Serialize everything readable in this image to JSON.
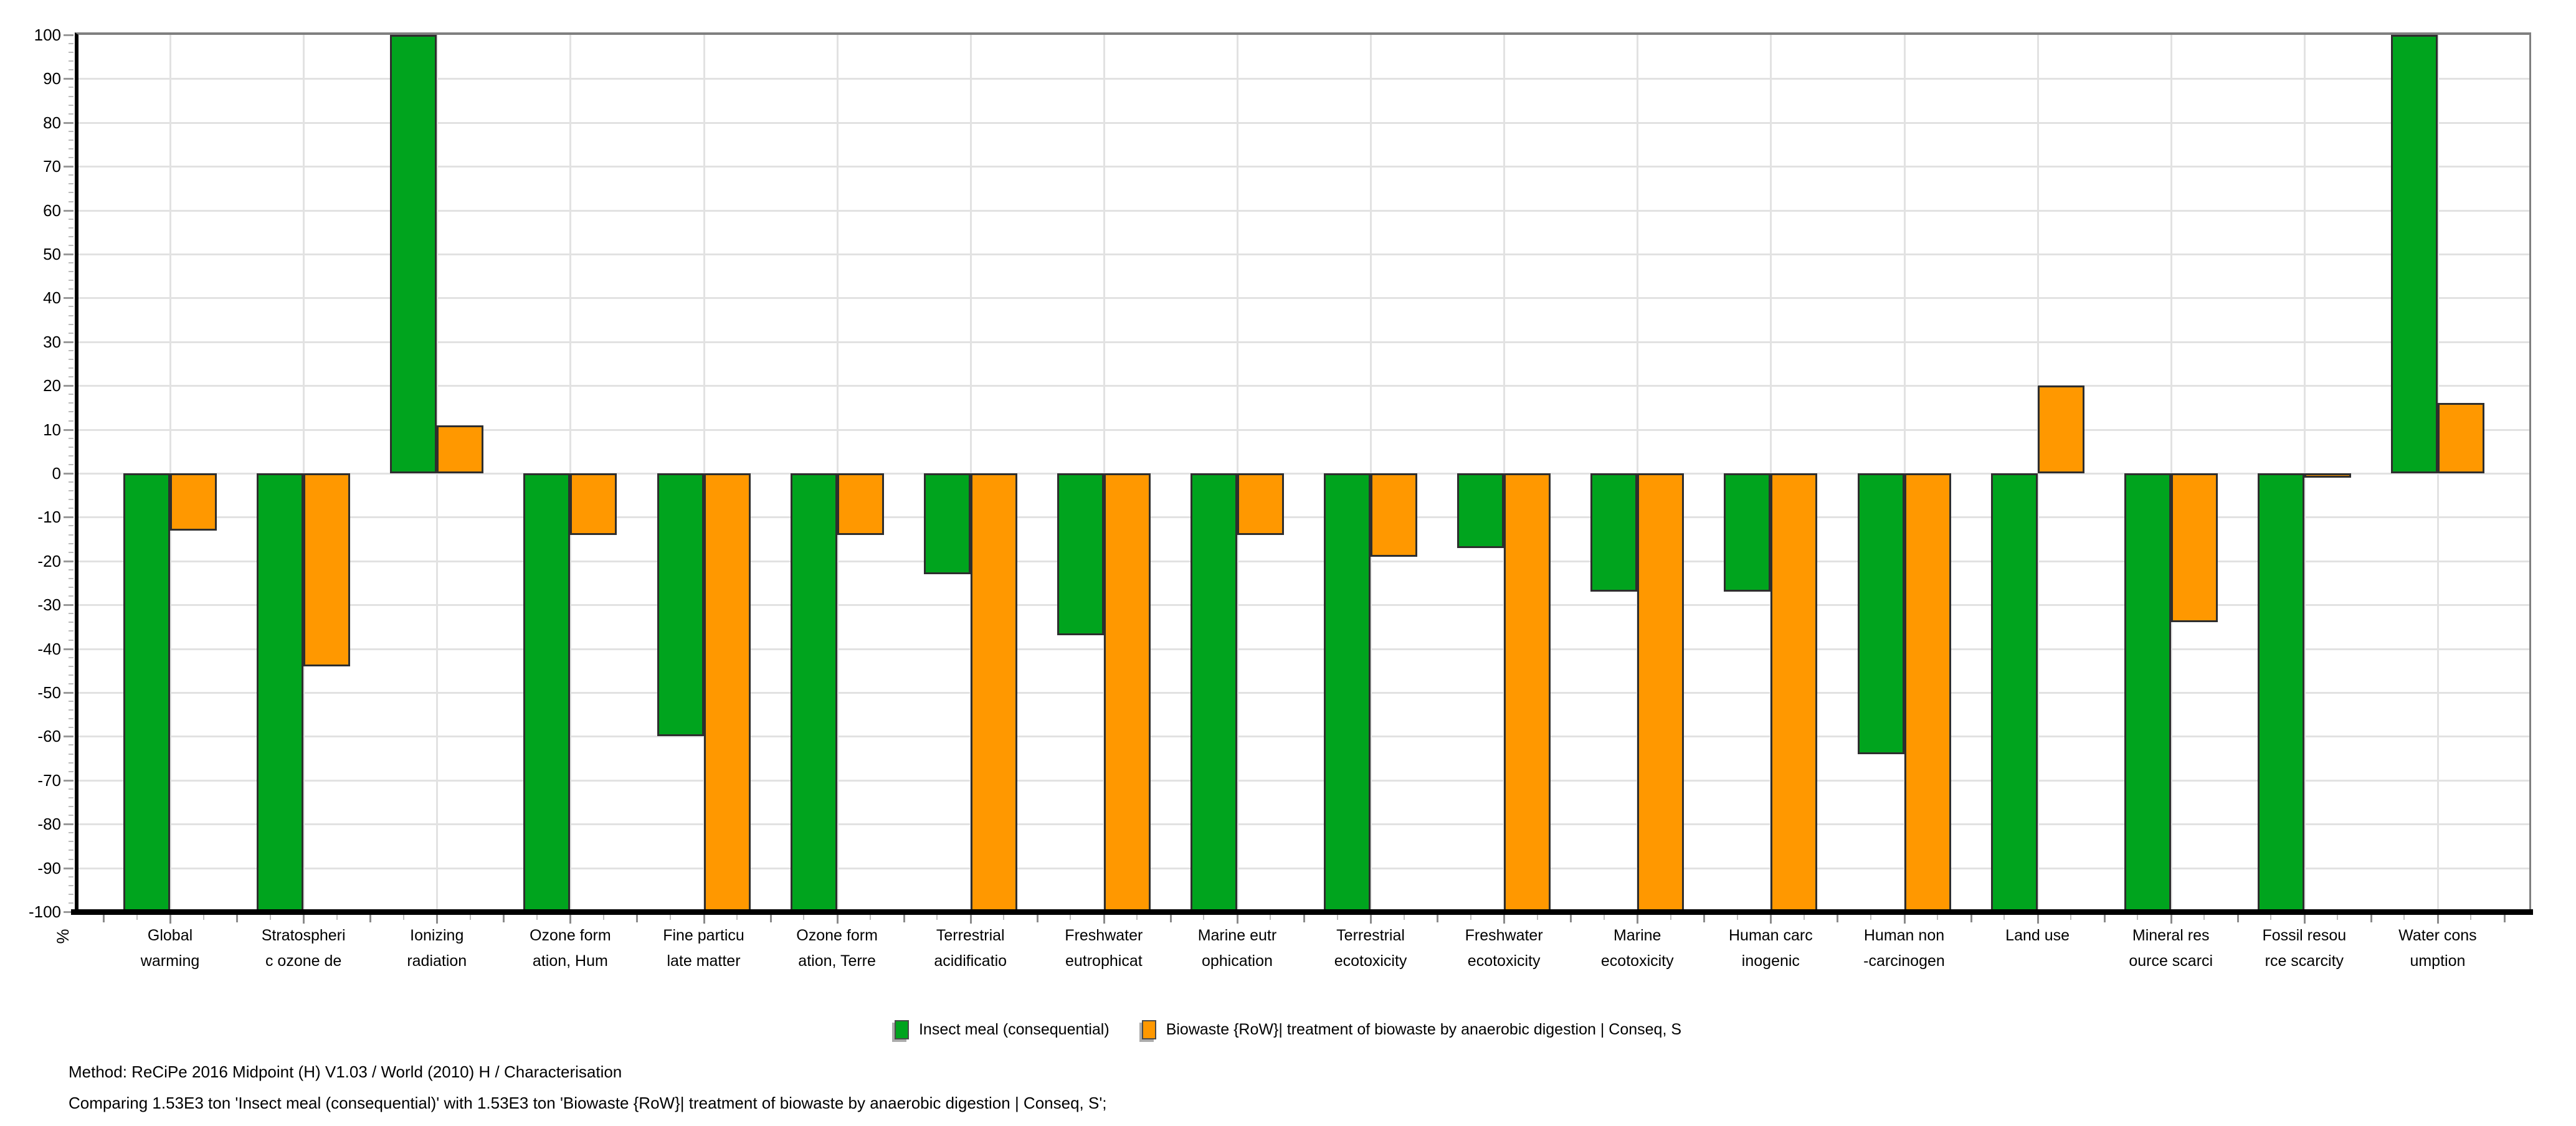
{
  "chart_data": {
    "type": "bar",
    "title": "",
    "ylabel": "%",
    "ylim": [
      -100,
      100
    ],
    "ytick_step": 10,
    "yticks": [
      100,
      90,
      80,
      70,
      60,
      50,
      40,
      30,
      20,
      10,
      0,
      -10,
      -20,
      -30,
      -40,
      -50,
      -60,
      -70,
      -80,
      -90,
      -100
    ],
    "grid": true,
    "legend_position": "bottom",
    "categories": [
      "Global\nwarming",
      "Stratospheri\nc ozone de",
      "Ionizing\nradiation",
      "Ozone form\nation, Hum",
      "Fine particu\nlate matter",
      "Ozone form\nation, Terre",
      "Terrestrial\nacidificatio",
      "Freshwater\neutrophicat",
      "Marine eutr\nophication",
      "Terrestrial\necotoxicity",
      "Freshwater\necotoxicity",
      "Marine\necotoxicity",
      "Human carc\ninogenic",
      "Human non\n-carcinogen",
      "Land use",
      "Mineral res\nource scarci",
      "Fossil resou\nrce scarcity",
      "Water cons\numption"
    ],
    "series": [
      {
        "name": "Insect meal (consequential)",
        "color": "#00A41E",
        "values": [
          -100,
          -100,
          100,
          -100,
          -60,
          -100,
          -23,
          -37,
          -100,
          -100,
          -17,
          -27,
          -27,
          -64,
          -100,
          -100,
          -100,
          100
        ]
      },
      {
        "name": "Biowaste {RoW}| treatment of biowaste by anaerobic digestion | Conseq, S",
        "color": "#FF9800",
        "values": [
          -13,
          -44,
          11,
          -14,
          -100,
          -14,
          -100,
          -100,
          -14,
          -19,
          -100,
          -100,
          -100,
          -100,
          20,
          -34,
          -1,
          16
        ]
      }
    ]
  },
  "legend": {
    "items": [
      {
        "label": "Insect meal (consequential)",
        "color": "#00A41E"
      },
      {
        "label": "Biowaste {RoW}| treatment of biowaste by anaerobic digestion | Conseq, S",
        "color": "#FF9800"
      }
    ]
  },
  "footer": {
    "method_line": "Method: ReCiPe 2016 Midpoint (H) V1.03 / World (2010) H / Characterisation",
    "comparing_line": "Comparing 1.53E3 ton 'Insect meal (consequential)' with 1.53E3 ton 'Biowaste {RoW}| treatment of biowaste by anaerobic digestion | Conseq, S';"
  },
  "colors": {
    "grid": "#E2E2E2",
    "frame_gray": "#7F7F7F",
    "axis_black": "#000000",
    "bar_border": "#2E2E2E"
  }
}
